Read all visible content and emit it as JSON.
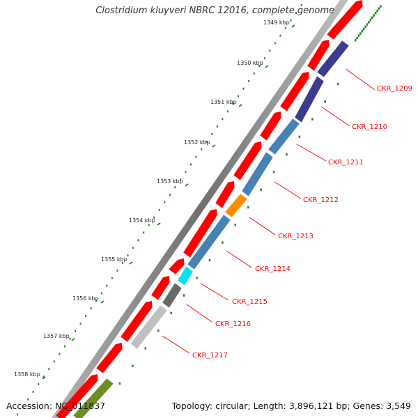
{
  "title": "Clostridium kluyveri NBRC 12016, complete genome",
  "footer": {
    "accession": "Accession: NC_011837",
    "topology": "Topology: circular; Length: 3,896,121 bp; Genes: 3,549"
  },
  "scale_labels": [
    "1349 kbp",
    "1350 kbp",
    "1351 kbp",
    "1352 kbp",
    "1353 kbp",
    "1354 kbp",
    "1355 kbp",
    "1356 kbp",
    "1357 kbp",
    "1358 kbp"
  ],
  "genes": [
    {
      "id": "CKR_1209",
      "color": "#3d3b8e"
    },
    {
      "id": "CKR_1210",
      "color": "#3d3b8e"
    },
    {
      "id": "CKR_1211",
      "color": "#4682b4"
    },
    {
      "id": "CKR_1212",
      "color": "#4682b4"
    },
    {
      "id": "CKR_1213",
      "color": "#ff8c00"
    },
    {
      "id": "CKR_1214",
      "color": "#4682b4"
    },
    {
      "id": "CKR_1215",
      "color": "#00e5ee"
    },
    {
      "id": "CKR_1216",
      "color": "#696969"
    },
    {
      "id": "CKR_1217",
      "color": "#c0c0c0"
    }
  ],
  "colors": {
    "cds_strand": "#ff0000",
    "backbone": "#8c8c8c",
    "tick": "#228b22",
    "label_line": "#ff0000",
    "extra_feature": "#6b8e23"
  }
}
